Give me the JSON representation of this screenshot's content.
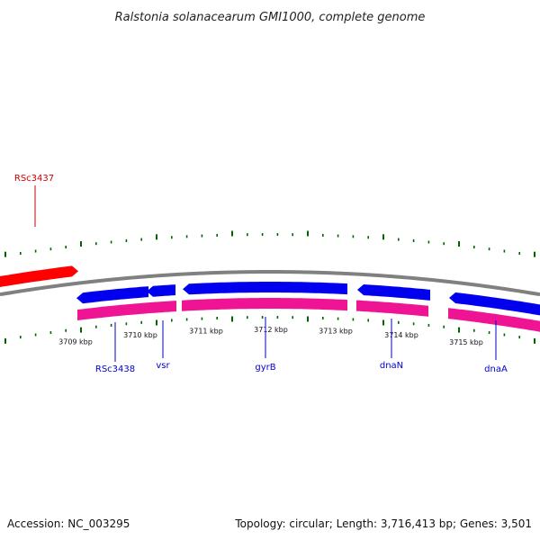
{
  "title": "Ralstonia solanacearum GMI1000, complete genome",
  "footer": {
    "accession": "Accession: NC_003295",
    "summary": "Topology: circular; Length: 3,716,413 bp; Genes: 3,501"
  },
  "colors": {
    "backbone": "#808080",
    "forward_gene": "#ff0000",
    "reverse_gene": "#0000ee",
    "cds": "#ee1493",
    "tick": "#006400",
    "forward_label": "#cc0000",
    "reverse_label": "#0000cc"
  },
  "scale": {
    "unit": "kbp",
    "labels": [
      "3709 kbp",
      "3710 kbp",
      "3711 kbp",
      "3712 kbp",
      "3713 kbp",
      "3714 kbp",
      "3715 kbp"
    ]
  },
  "genes": [
    {
      "label": "RSc3437",
      "strand": "forward"
    },
    {
      "label": "RSc3438",
      "strand": "reverse"
    },
    {
      "label": "vsr",
      "strand": "reverse"
    },
    {
      "label": "gyrB",
      "strand": "reverse"
    },
    {
      "label": "dnaN",
      "strand": "reverse"
    },
    {
      "label": "dnaA",
      "strand": "reverse"
    }
  ]
}
